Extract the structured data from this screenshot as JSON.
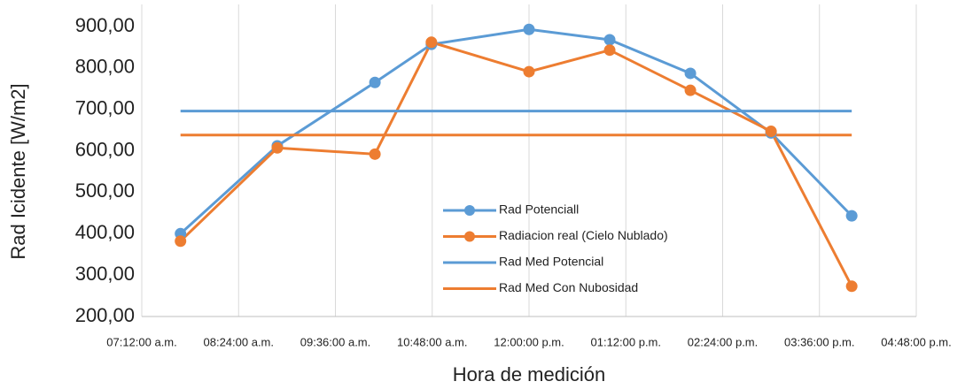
{
  "chart_data": {
    "type": "line",
    "xlabel": "Hora de medición",
    "ylabel": "Rad Icidente [W/m2]",
    "x": [
      7.68,
      8.88,
      10.09,
      10.79,
      12.0,
      13.0,
      14.0,
      15.0,
      16.0
    ],
    "series": [
      {
        "name": "Rad Potenciall",
        "color": "#5b9bd5",
        "markers": true,
        "values": [
          400,
          612,
          765,
          857,
          893,
          868,
          787,
          643,
          443
        ]
      },
      {
        "name": "Radiacion real (Cielo Nublado)",
        "color": "#ed7d31",
        "markers": true,
        "values": [
          382,
          607,
          592,
          862,
          791,
          843,
          746,
          647,
          273
        ]
      },
      {
        "name": "Rad Med Potencial",
        "color": "#5b9bd5",
        "markers": false,
        "values": [
          696,
          696,
          696,
          696,
          696,
          696,
          696,
          696,
          696
        ]
      },
      {
        "name": "Rad Med Con Nubosidad",
        "color": "#ed7d31",
        "markers": false,
        "values": [
          638,
          638,
          638,
          638,
          638,
          638,
          638,
          638,
          638
        ]
      }
    ],
    "xlim": [
      7.2,
      16.8
    ],
    "xticks": [
      {
        "value": 7.2,
        "label": "07:12:00 a.m."
      },
      {
        "value": 8.4,
        "label": "08:24:00 a.m."
      },
      {
        "value": 9.6,
        "label": "09:36:00 a.m."
      },
      {
        "value": 10.8,
        "label": "10:48:00 a.m."
      },
      {
        "value": 12.0,
        "label": "12:00:00 p.m."
      },
      {
        "value": 13.2,
        "label": "01:12:00 p.m."
      },
      {
        "value": 14.4,
        "label": "02:24:00 p.m."
      },
      {
        "value": 15.6,
        "label": "03:36:00 p.m."
      },
      {
        "value": 16.8,
        "label": "04:48:00 p.m."
      }
    ],
    "ylim": [
      200,
      900
    ],
    "yticks": [
      {
        "value": 200,
        "label": "200,00"
      },
      {
        "value": 300,
        "label": "300,00"
      },
      {
        "value": 400,
        "label": "400,00"
      },
      {
        "value": 500,
        "label": "500,00"
      },
      {
        "value": 600,
        "label": "600,00"
      },
      {
        "value": 700,
        "label": "700,00"
      },
      {
        "value": 800,
        "label": "800,00"
      },
      {
        "value": 900,
        "label": "900,00"
      }
    ],
    "grid": "x",
    "legend": "center"
  }
}
